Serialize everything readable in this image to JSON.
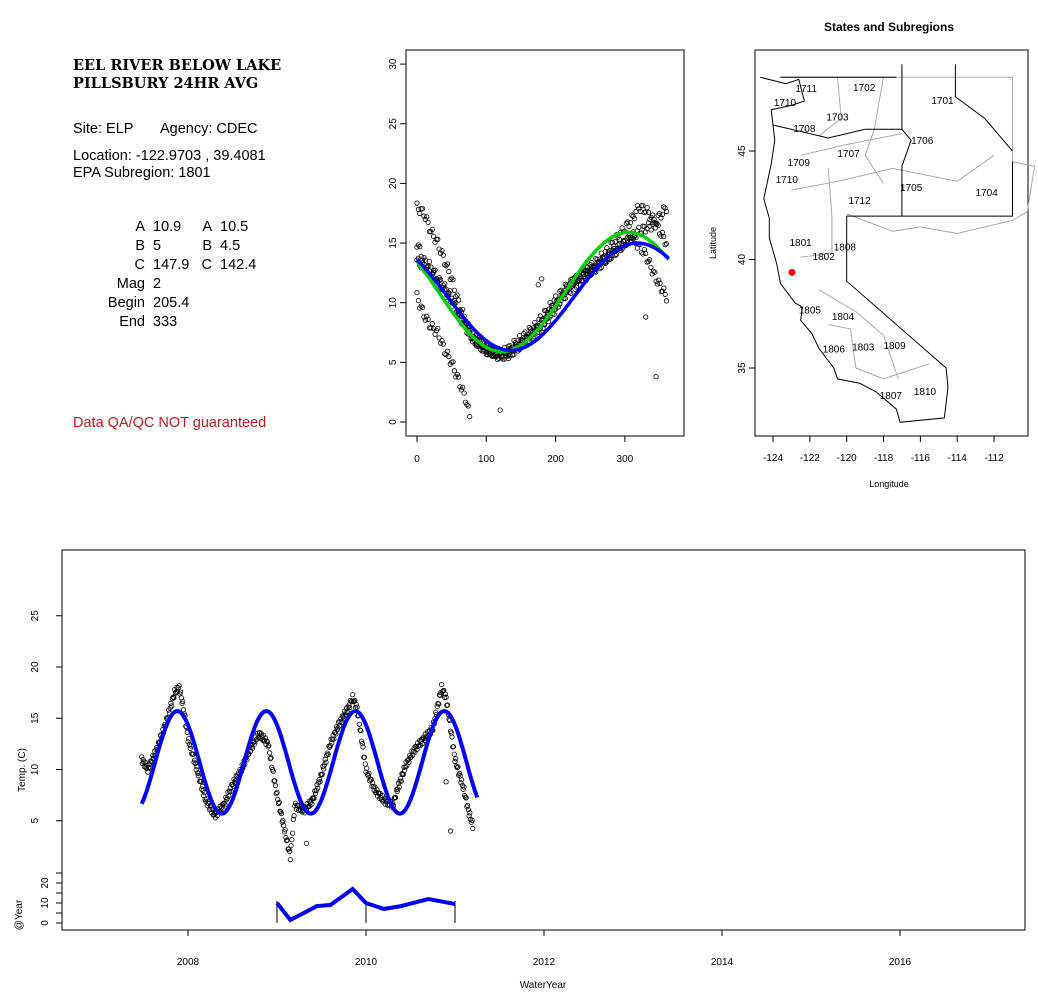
{
  "info": {
    "title_line1": "EEL RIVER BELOW LAKE",
    "title_line2": "PILLSBURY 24HR AVG",
    "site": "Site: ELP",
    "agency": "Agency: CDEC",
    "location": "Location: -122.9703 , 39.4081",
    "subregion": "EPA Subregion: 1801",
    "params_left": [
      [
        "A",
        "10.9"
      ],
      [
        "B",
        "5"
      ],
      [
        "C",
        "147.9"
      ],
      [
        "Mag",
        "2"
      ],
      [
        "Begin",
        "205.4"
      ],
      [
        "End",
        "333"
      ]
    ],
    "params_right": [
      [
        "A",
        "10.5"
      ],
      [
        "B",
        "4.5"
      ],
      [
        "C",
        "142.4"
      ]
    ],
    "disclaimer": "Data QA/QC NOT guaranteed",
    "disclaimer_color": "#B22222"
  },
  "chart_data": [
    {
      "id": "seasonal",
      "type": "scatter",
      "title": "",
      "xlabel": "",
      "ylabel": "",
      "xlim": [
        -15,
        375
      ],
      "ylim": [
        -1,
        31.3
      ],
      "xticks": [
        "0",
        "100",
        "200",
        "300"
      ],
      "yticks": [
        "0",
        "5",
        "10",
        "15",
        "20",
        "25",
        "30"
      ],
      "series": [
        {
          "name": "obs-high",
          "points": [
            [
              0,
              18
            ],
            [
              10,
              17.5
            ],
            [
              20,
              16
            ],
            [
              30,
              15
            ],
            [
              40,
              13.5
            ],
            [
              50,
              12
            ],
            [
              60,
              10
            ],
            [
              70,
              8.5
            ],
            [
              80,
              7
            ],
            [
              90,
              6.5
            ],
            [
              100,
              6
            ],
            [
              110,
              5.8
            ],
            [
              120,
              5.8
            ],
            [
              130,
              6
            ],
            [
              140,
              6.5
            ],
            [
              150,
              7
            ],
            [
              170,
              8
            ],
            [
              190,
              9.5
            ],
            [
              210,
              11
            ],
            [
              230,
              12
            ],
            [
              250,
              13
            ],
            [
              270,
              14
            ],
            [
              290,
              15.5
            ],
            [
              310,
              17
            ],
            [
              320,
              18
            ],
            [
              330,
              17.8
            ],
            [
              340,
              17
            ],
            [
              350,
              16
            ],
            [
              360,
              15
            ]
          ]
        },
        {
          "name": "obs-falling",
          "points": [
            [
              0,
              10.5
            ],
            [
              10,
              9
            ],
            [
              20,
              8
            ],
            [
              30,
              7.5
            ],
            [
              40,
              6
            ],
            [
              50,
              5
            ],
            [
              60,
              3.5
            ],
            [
              70,
              2
            ],
            [
              76,
              0.5
            ]
          ]
        },
        {
          "name": "obs-mid",
          "points": [
            [
              0,
              15
            ],
            [
              10,
              13.5
            ],
            [
              20,
              13
            ],
            [
              30,
              12
            ],
            [
              50,
              10.5
            ],
            [
              70,
              8
            ],
            [
              90,
              6.5
            ],
            [
              110,
              5.8
            ],
            [
              130,
              5.5
            ],
            [
              150,
              6.5
            ],
            [
              170,
              7.5
            ],
            [
              190,
              9
            ],
            [
              210,
              10.5
            ],
            [
              230,
              11.5
            ],
            [
              250,
              12.5
            ],
            [
              270,
              13.5
            ],
            [
              290,
              14.5
            ],
            [
              310,
              15.5
            ],
            [
              330,
              14
            ],
            [
              345,
              12
            ],
            [
              360,
              10.5
            ]
          ]
        },
        {
          "name": "obs-late",
          "points": [
            [
              0,
              13.5
            ],
            [
              20,
              12.5
            ],
            [
              40,
              11
            ],
            [
              60,
              9
            ],
            [
              80,
              7
            ],
            [
              100,
              6
            ],
            [
              120,
              5.5
            ],
            [
              140,
              6
            ],
            [
              160,
              7
            ],
            [
              180,
              8
            ],
            [
              200,
              9.5
            ],
            [
              220,
              11.5
            ],
            [
              240,
              12.5
            ],
            [
              260,
              13
            ],
            [
              280,
              14
            ],
            [
              300,
              15
            ],
            [
              320,
              16
            ],
            [
              340,
              16.5
            ],
            [
              360,
              18
            ]
          ]
        }
      ],
      "outliers": [
        [
          120,
          1
        ],
        [
          330,
          8.8
        ],
        [
          345,
          3.8
        ],
        [
          180,
          12
        ],
        [
          175,
          11.5
        ]
      ],
      "fits": [
        {
          "name": "fit-green",
          "color": "#00CC00",
          "mean": 10.9,
          "amplitude": 5,
          "peak_day": 305
        },
        {
          "name": "fit-blue",
          "color": "#0000FF",
          "mean": 10.5,
          "amplitude": 4.5,
          "peak_day": 318
        }
      ]
    },
    {
      "id": "map",
      "type": "map",
      "title": "States and Subregions",
      "xlabel": "Longitude",
      "ylabel": "Latitude",
      "xlim": [
        -125,
        -110.3
      ],
      "ylim": [
        32.2,
        50
      ],
      "xticks": [
        "-124",
        "-122",
        "-120",
        "-118",
        "-116",
        "-114",
        "-112"
      ],
      "yticks": [
        "35",
        "40",
        "45"
      ],
      "site": {
        "lon": -122.9703,
        "lat": 39.4081,
        "color": "#FF0000"
      },
      "regions": [
        {
          "label": "1711",
          "lon": -122.2,
          "lat": 47.9
        },
        {
          "label": "1710",
          "lon": -123.35,
          "lat": 47.25
        },
        {
          "label": "1702",
          "lon": -119.05,
          "lat": 47.95
        },
        {
          "label": "1701",
          "lon": -114.8,
          "lat": 47.35
        },
        {
          "label": "1703",
          "lon": -120.5,
          "lat": 46.6
        },
        {
          "label": "1708",
          "lon": -122.3,
          "lat": 46.05
        },
        {
          "label": "1706",
          "lon": -115.9,
          "lat": 45.5
        },
        {
          "label": "1707",
          "lon": -119.9,
          "lat": 44.9
        },
        {
          "label": "1709",
          "lon": -122.6,
          "lat": 44.5
        },
        {
          "label": "1710",
          "lon": -123.25,
          "lat": 43.7
        },
        {
          "label": "1705",
          "lon": -116.5,
          "lat": 43.35
        },
        {
          "label": "1704",
          "lon": -112.4,
          "lat": 43.1
        },
        {
          "label": "1712",
          "lon": -119.3,
          "lat": 42.75
        },
        {
          "label": "1801",
          "lon": -122.5,
          "lat": 40.8
        },
        {
          "label": "1808",
          "lon": -120.1,
          "lat": 40.6
        },
        {
          "label": "1802",
          "lon": -121.25,
          "lat": 40.15
        },
        {
          "label": "1805",
          "lon": -122.0,
          "lat": 37.7
        },
        {
          "label": "1804",
          "lon": -120.2,
          "lat": 37.4
        },
        {
          "label": "1806",
          "lon": -120.7,
          "lat": 35.9
        },
        {
          "label": "1803",
          "lon": -119.1,
          "lat": 36.0
        },
        {
          "label": "1809",
          "lon": -117.4,
          "lat": 36.05
        },
        {
          "label": "1807",
          "lon": -117.6,
          "lat": 33.75
        },
        {
          "label": "1810",
          "lon": -115.75,
          "lat": 33.95
        }
      ]
    },
    {
      "id": "timeseries",
      "type": "scatter",
      "xlabel": "WaterYear",
      "ylabel": "Temp. (C)",
      "ylabel2": "@Year",
      "xlim": [
        2006.6,
        2017.4
      ],
      "xticks": [
        "2008",
        "2010",
        "2012",
        "2014",
        "2016"
      ],
      "yticks": [
        "5",
        "10",
        "15",
        "20",
        "25"
      ],
      "yticks2": [
        "0",
        "10",
        "20"
      ],
      "points": [
        [
          2007.48,
          11
        ],
        [
          2007.55,
          10
        ],
        [
          2007.65,
          12
        ],
        [
          2007.75,
          14.5
        ],
        [
          2007.85,
          17.5
        ],
        [
          2007.9,
          18
        ],
        [
          2007.95,
          16
        ],
        [
          2008.0,
          13
        ],
        [
          2008.1,
          10
        ],
        [
          2008.2,
          7
        ],
        [
          2008.3,
          5.5
        ],
        [
          2008.4,
          6.5
        ],
        [
          2008.5,
          8.5
        ],
        [
          2008.6,
          10
        ],
        [
          2008.7,
          12
        ],
        [
          2008.8,
          13.5
        ],
        [
          2008.9,
          12.5
        ],
        [
          2008.95,
          10
        ],
        [
          2009.0,
          7.5
        ],
        [
          2009.05,
          5.5
        ],
        [
          2009.1,
          3.5
        ],
        [
          2009.15,
          1.5
        ],
        [
          2009.2,
          6.5
        ],
        [
          2009.3,
          6
        ],
        [
          2009.4,
          7
        ],
        [
          2009.5,
          9.5
        ],
        [
          2009.6,
          12.5
        ],
        [
          2009.7,
          14.5
        ],
        [
          2009.8,
          16
        ],
        [
          2009.85,
          17
        ],
        [
          2009.9,
          16
        ],
        [
          2009.95,
          13
        ],
        [
          2010.0,
          10
        ],
        [
          2010.1,
          8
        ],
        [
          2010.2,
          7
        ],
        [
          2010.3,
          6.5
        ],
        [
          2010.35,
          8
        ],
        [
          2010.45,
          10.5
        ],
        [
          2010.55,
          12
        ],
        [
          2010.65,
          13
        ],
        [
          2010.75,
          14
        ],
        [
          2010.8,
          16
        ],
        [
          2010.85,
          18
        ],
        [
          2010.9,
          17
        ],
        [
          2010.95,
          14
        ],
        [
          2011.0,
          11
        ],
        [
          2011.1,
          8
        ],
        [
          2011.15,
          6
        ],
        [
          2011.2,
          4.5
        ]
      ],
      "outliers": [
        [
          2009.33,
          2.8
        ],
        [
          2010.9,
          8.8
        ],
        [
          2010.95,
          4
        ]
      ],
      "fit": {
        "color": "#0000FF",
        "mean": 10.7,
        "amplitude": 5,
        "peak_fraction": 0.88,
        "start": 2007.48,
        "end": 2011.25
      },
      "year_curve": [
        [
          2009.0,
          10
        ],
        [
          2009.15,
          1.5
        ],
        [
          2009.3,
          5
        ],
        [
          2009.45,
          8.5
        ],
        [
          2009.6,
          9
        ],
        [
          2009.85,
          17
        ],
        [
          2010.0,
          10
        ],
        [
          2010.2,
          7
        ],
        [
          2010.4,
          8.5
        ],
        [
          2010.7,
          12
        ],
        [
          2011.0,
          9.5
        ]
      ],
      "year_marks": [
        2009,
        2010,
        2011
      ]
    }
  ]
}
